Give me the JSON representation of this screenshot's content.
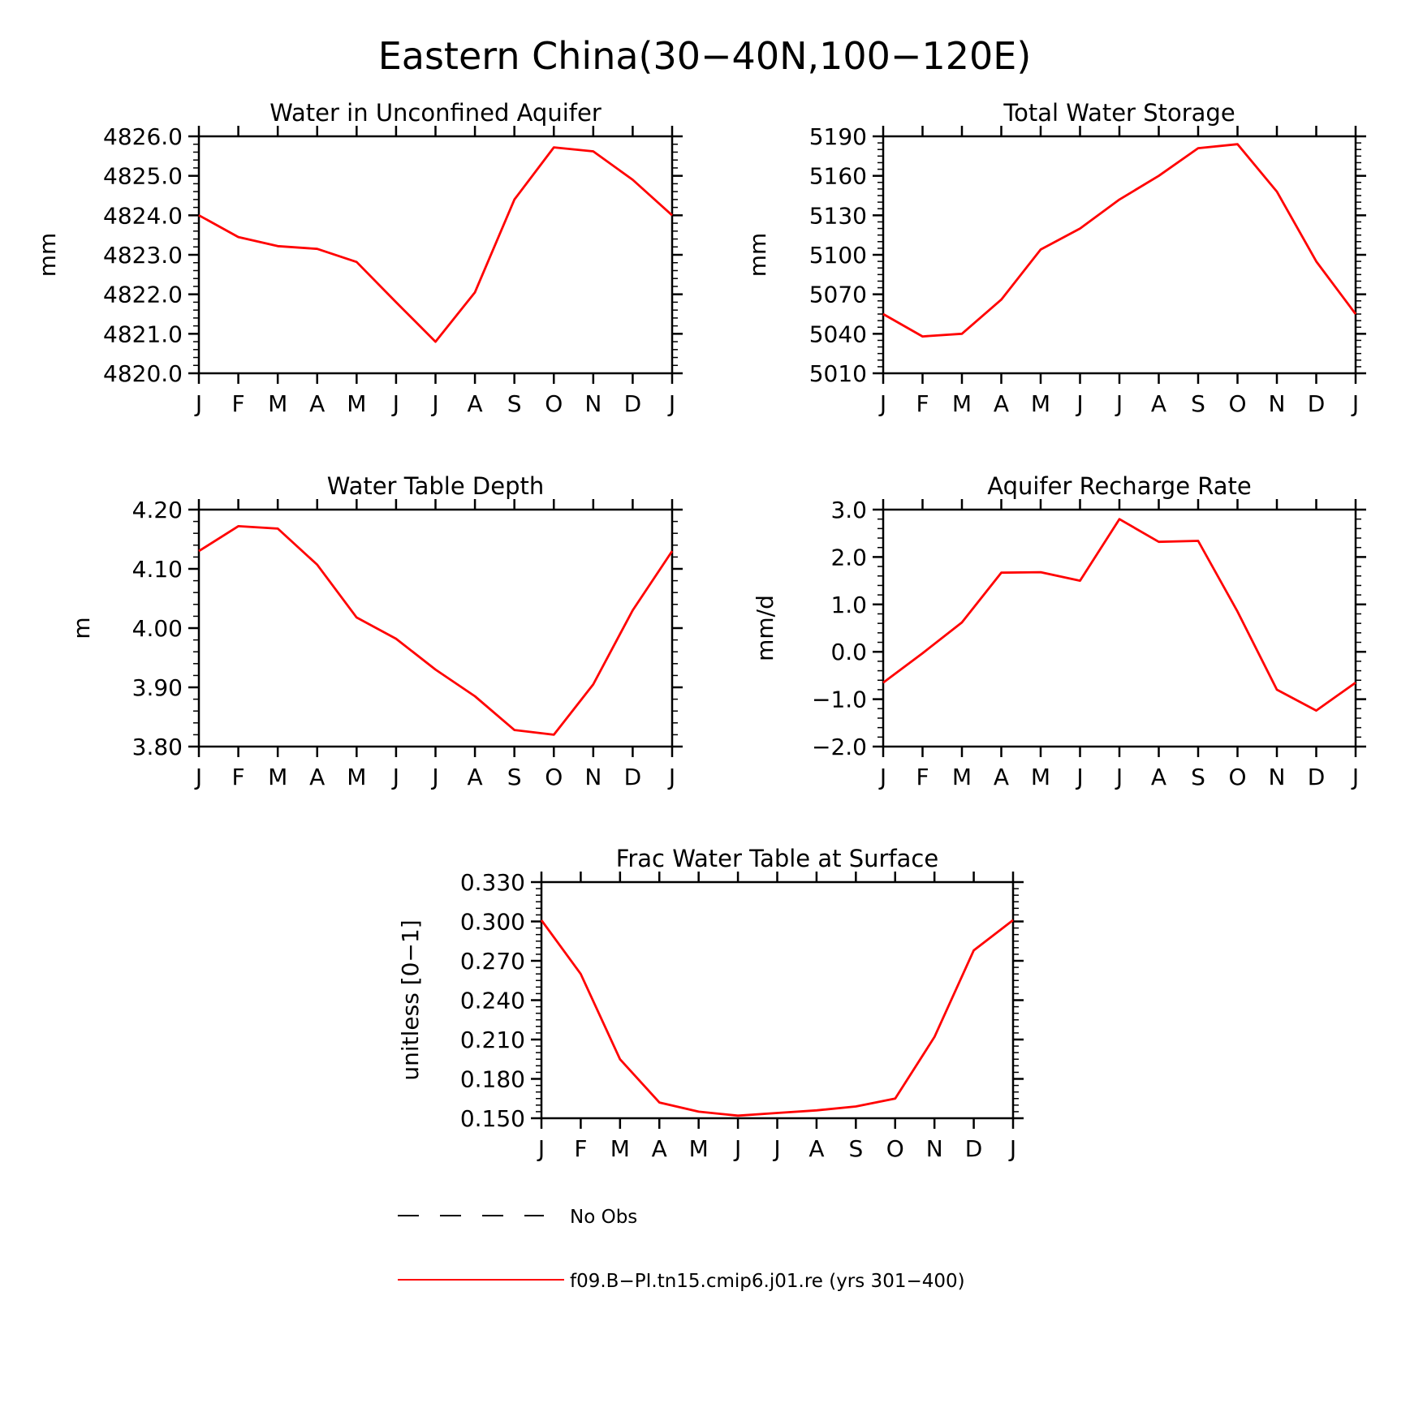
{
  "figure": {
    "title": "Eastern China(30−40N,100−120E)",
    "colors": {
      "model": "#ff0000",
      "axis": "#000000",
      "obs": "#000000"
    }
  },
  "chart_data": [
    {
      "type": "line",
      "title": "Water in Unconfined Aquifer",
      "xlabel": "",
      "ylabel": "mm",
      "categories": [
        "J",
        "F",
        "M",
        "A",
        "M",
        "J",
        "J",
        "A",
        "S",
        "O",
        "N",
        "D",
        "J"
      ],
      "ylim": [
        4820.0,
        4826.0
      ],
      "yticks": [
        "4820.0",
        "4821.0",
        "4822.0",
        "4823.0",
        "4824.0",
        "4825.0",
        "4826.0"
      ],
      "minor_per_major": 5,
      "series": [
        {
          "name": "f09.B−PI.tn15.cmip6.j01.re (yrs 301−400)",
          "values": [
            4824.0,
            4823.45,
            4823.22,
            4823.15,
            4822.82,
            4821.8,
            4820.8,
            4822.05,
            4824.4,
            4825.72,
            4825.62,
            4824.9,
            4824.0
          ]
        }
      ]
    },
    {
      "type": "line",
      "title": "Total Water Storage",
      "xlabel": "",
      "ylabel": "mm",
      "categories": [
        "J",
        "F",
        "M",
        "A",
        "M",
        "J",
        "J",
        "A",
        "S",
        "O",
        "N",
        "D",
        "J"
      ],
      "ylim": [
        5010,
        5190
      ],
      "yticks": [
        "5010",
        "5040",
        "5070",
        "5100",
        "5130",
        "5160",
        "5190"
      ],
      "minor_per_major": 6,
      "series": [
        {
          "name": "f09.B−PI.tn15.cmip6.j01.re (yrs 301−400)",
          "values": [
            5055,
            5038,
            5040,
            5066,
            5104,
            5120,
            5142,
            5160,
            5181,
            5184,
            5148,
            5095,
            5055
          ]
        }
      ]
    },
    {
      "type": "line",
      "title": "Water Table Depth",
      "xlabel": "",
      "ylabel": "m",
      "categories": [
        "J",
        "F",
        "M",
        "A",
        "M",
        "J",
        "J",
        "A",
        "S",
        "O",
        "N",
        "D",
        "J"
      ],
      "ylim": [
        3.8,
        4.2
      ],
      "yticks": [
        "3.80",
        "3.90",
        "4.00",
        "4.10",
        "4.20"
      ],
      "minor_per_major": 5,
      "series": [
        {
          "name": "f09.B−PI.tn15.cmip6.j01.re (yrs 301−400)",
          "values": [
            4.13,
            4.172,
            4.168,
            4.107,
            4.018,
            3.982,
            3.93,
            3.885,
            3.828,
            3.82,
            3.905,
            4.03,
            4.13
          ]
        }
      ]
    },
    {
      "type": "line",
      "title": "Aquifer Recharge Rate",
      "xlabel": "",
      "ylabel": "mm/d",
      "categories": [
        "J",
        "F",
        "M",
        "A",
        "M",
        "J",
        "J",
        "A",
        "S",
        "O",
        "N",
        "D",
        "J"
      ],
      "ylim": [
        -2.0,
        3.0
      ],
      "yticks": [
        "−2.0",
        "−1.0",
        "0.0",
        "1.0",
        "2.0",
        "3.0"
      ],
      "minor_per_major": 5,
      "series": [
        {
          "name": "f09.B−PI.tn15.cmip6.j01.re (yrs 301−400)",
          "values": [
            -0.65,
            -0.03,
            0.62,
            1.67,
            1.68,
            1.5,
            2.8,
            2.32,
            2.34,
            0.85,
            -0.8,
            -1.24,
            -0.65
          ]
        }
      ]
    },
    {
      "type": "line",
      "title": "Frac Water Table at Surface",
      "xlabel": "",
      "ylabel": "unitless [0−1]",
      "categories": [
        "J",
        "F",
        "M",
        "A",
        "M",
        "J",
        "J",
        "A",
        "S",
        "O",
        "N",
        "D",
        "J"
      ],
      "ylim": [
        0.15,
        0.33
      ],
      "yticks": [
        "0.150",
        "0.180",
        "0.210",
        "0.240",
        "0.270",
        "0.300",
        "0.330"
      ],
      "minor_per_major": 6,
      "series": [
        {
          "name": "f09.B−PI.tn15.cmip6.j01.re (yrs 301−400)",
          "values": [
            0.301,
            0.26,
            0.195,
            0.162,
            0.155,
            0.152,
            0.154,
            0.156,
            0.159,
            0.165,
            0.212,
            0.278,
            0.301
          ]
        }
      ]
    }
  ],
  "legend": {
    "items": [
      {
        "label": "No Obs",
        "style": "dashed",
        "color": "#000000"
      },
      {
        "label": "f09.B−PI.tn15.cmip6.j01.re (yrs 301−400)",
        "style": "solid",
        "color": "#ff0000"
      }
    ]
  }
}
